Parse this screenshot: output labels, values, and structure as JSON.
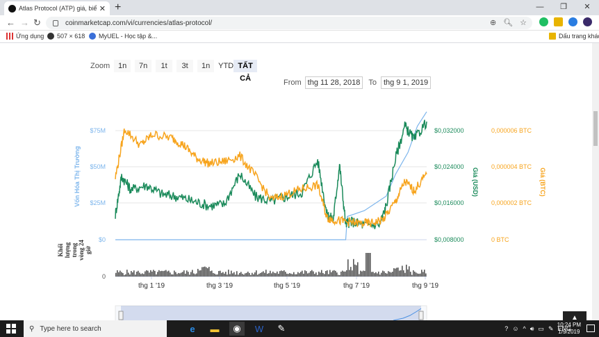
{
  "browser": {
    "tab_title": "Atlas Protocol (ATP) giá, biểu đồ",
    "tab_close": "✕",
    "new_tab": "+",
    "url": "coinmarketcap.com/vi/currencies/atlas-protocol/",
    "bookmarks": [
      {
        "label": "Ứng dụng"
      },
      {
        "label": "507 × 618"
      },
      {
        "label": "MyUEL - Học tập &..."
      }
    ],
    "other_bookmarks": "Dấu trang khác"
  },
  "zoom": {
    "label": "Zoom",
    "buttons": [
      "1n",
      "7n",
      "1t",
      "3t",
      "1n",
      "YTD",
      "TẤT CẢ"
    ],
    "active": "TẤT CẢ"
  },
  "range": {
    "from_label": "From",
    "from_value": "thg 11 28, 2018",
    "to_label": "To",
    "to_value": "thg 9 1, 2019"
  },
  "chart_data": {
    "type": "line",
    "x_ticks": [
      "thg 1 '19",
      "thg 3 '19",
      "thg 5 '19",
      "thg 7 '19",
      "thg 9 '19"
    ],
    "left_axis": {
      "title": "Vốn Hóa Thị Trường",
      "ticks": [
        "$0",
        "$25M",
        "$50M",
        "$75M"
      ],
      "color": "#7cb5ec"
    },
    "right_axis_usd": {
      "title": "Giá (USD)",
      "ticks": [
        "$0,008000",
        "$0,016000",
        "$0,024000",
        "$0,032000"
      ],
      "color": "#1a8a5a"
    },
    "right_axis_btc": {
      "title": "Giá (BTC)",
      "ticks": [
        "0 BTC",
        "0,000002 BTC",
        "0,000004 BTC",
        "0,000006 BTC"
      ],
      "color": "#f7a41d"
    },
    "volume_axis": {
      "title": "Khối lượng trong vòng 24 giờ",
      "ticks": [
        "0"
      ]
    },
    "series": [
      {
        "name": "Vốn Hóa Thị Trường",
        "color": "#7cb5ec",
        "unit": "USD",
        "x": [
          0,
          0.74,
          0.745,
          0.8,
          0.87,
          0.9,
          0.94,
          0.97,
          1.0
        ],
        "values": [
          0,
          0,
          16000000,
          20000000,
          30000000,
          45000000,
          60000000,
          78000000,
          88000000
        ]
      },
      {
        "name": "Giá (USD)",
        "color": "#1a8a5a",
        "unit": "USD",
        "x": [
          0,
          0.02,
          0.05,
          0.1,
          0.15,
          0.2,
          0.25,
          0.3,
          0.35,
          0.4,
          0.45,
          0.5,
          0.55,
          0.6,
          0.65,
          0.68,
          0.7,
          0.72,
          0.74,
          0.76,
          0.8,
          0.85,
          0.87,
          0.9,
          0.93,
          0.96,
          1.0
        ],
        "values": [
          0.0135,
          0.022,
          0.019,
          0.02,
          0.018,
          0.0175,
          0.0165,
          0.0155,
          0.0158,
          0.0225,
          0.0175,
          0.0165,
          0.0175,
          0.0185,
          0.0255,
          0.0135,
          0.0125,
          0.0245,
          0.0115,
          0.012,
          0.0112,
          0.0115,
          0.0155,
          0.026,
          0.033,
          0.03,
          0.034
        ]
      },
      {
        "name": "Giá (BTC)",
        "color": "#f7a41d",
        "unit": "BTC",
        "x": [
          0,
          0.03,
          0.08,
          0.12,
          0.18,
          0.22,
          0.26,
          0.3,
          0.35,
          0.4,
          0.45,
          0.5,
          0.55,
          0.6,
          0.65,
          0.68,
          0.7,
          0.74,
          0.78,
          0.82,
          0.86,
          0.9,
          0.93,
          0.96,
          1.0
        ],
        "values": [
          3.4e-06,
          6.1e-06,
          5.2e-06,
          5.8e-06,
          5.6e-06,
          5.2e-06,
          4.5e-06,
          4.2e-06,
          4.3e-06,
          4.6e-06,
          3.5e-06,
          2.2e-06,
          2.5e-06,
          2.8e-06,
          3e-06,
          1.2e-06,
          1.1e-06,
          1e-06,
          9e-07,
          9e-07,
          1.1e-06,
          2.1e-06,
          3.2e-06,
          2.7e-06,
          3.6e-06
        ]
      }
    ]
  },
  "taskbar": {
    "search_placeholder": "Type here to search",
    "language": "ENG",
    "time": "10:24 PM",
    "date": "1/9/2019"
  }
}
